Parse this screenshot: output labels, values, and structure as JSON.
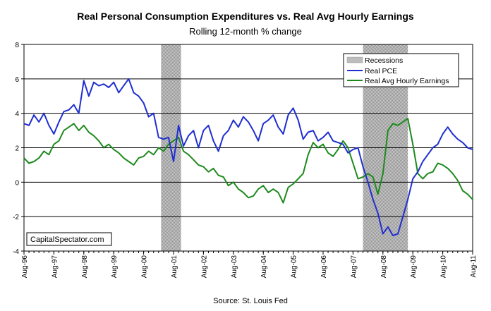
{
  "chart_data": {
    "type": "line",
    "title": "Real Personal Consumption Expenditures vs. Real Avg Hourly Earnings",
    "subtitle": "Rolling 12-month % change",
    "source": "Source: St. Louis Fed",
    "watermark": "CapitalSpectator.com",
    "ylim": [
      -4,
      8
    ],
    "yticks": [
      "8",
      "6",
      "4",
      "2",
      "0",
      "-2",
      "-4"
    ],
    "xlim": [
      "1996-08",
      "2011-08"
    ],
    "xticks": [
      "Aug-96",
      "Aug-97",
      "Aug-98",
      "Aug-99",
      "Aug-00",
      "Aug-01",
      "Aug-02",
      "Aug-03",
      "Aug-04",
      "Aug-05",
      "Aug-06",
      "Aug-07",
      "Aug-08",
      "Aug-09",
      "Aug-10",
      "Aug-11"
    ],
    "grid": true,
    "legend_position": "top-right",
    "legend": [
      "Recessions",
      "Real PCE",
      "Real Avg Hourly Earnings"
    ],
    "recessions": [
      {
        "start": "2001-03",
        "end": "2001-11"
      },
      {
        "start": "2007-12",
        "end": "2009-06"
      }
    ],
    "colors": {
      "pce": "#1f2fd0",
      "earnings": "#1e8a1e",
      "recession": "#bdbdbd"
    },
    "series": [
      {
        "name": "Real PCE",
        "x": [
          "1996-08",
          "1996-10",
          "1996-12",
          "1997-02",
          "1997-04",
          "1997-06",
          "1997-08",
          "1997-10",
          "1997-12",
          "1998-02",
          "1998-04",
          "1998-06",
          "1998-08",
          "1998-10",
          "1998-12",
          "1999-02",
          "1999-04",
          "1999-06",
          "1999-08",
          "1999-10",
          "1999-12",
          "2000-02",
          "2000-04",
          "2000-06",
          "2000-08",
          "2000-10",
          "2000-12",
          "2001-02",
          "2001-04",
          "2001-06",
          "2001-08",
          "2001-10",
          "2001-12",
          "2002-02",
          "2002-04",
          "2002-06",
          "2002-08",
          "2002-10",
          "2002-12",
          "2003-02",
          "2003-04",
          "2003-06",
          "2003-08",
          "2003-10",
          "2003-12",
          "2004-02",
          "2004-04",
          "2004-06",
          "2004-08",
          "2004-10",
          "2004-12",
          "2005-02",
          "2005-04",
          "2005-06",
          "2005-08",
          "2005-10",
          "2005-12",
          "2006-02",
          "2006-04",
          "2006-06",
          "2006-08",
          "2006-10",
          "2006-12",
          "2007-02",
          "2007-04",
          "2007-06",
          "2007-08",
          "2007-10",
          "2007-12",
          "2008-02",
          "2008-04",
          "2008-06",
          "2008-08",
          "2008-10",
          "2008-12",
          "2009-02",
          "2009-04",
          "2009-06",
          "2009-08",
          "2009-10",
          "2009-12",
          "2010-02",
          "2010-04",
          "2010-06",
          "2010-08",
          "2010-10",
          "2010-12",
          "2011-02",
          "2011-04",
          "2011-06",
          "2011-08"
        ],
        "values": [
          3.4,
          3.3,
          3.9,
          3.5,
          4.0,
          3.3,
          2.8,
          3.5,
          4.1,
          4.2,
          4.5,
          4.0,
          5.9,
          5.0,
          5.8,
          5.6,
          5.7,
          5.5,
          5.8,
          5.2,
          5.6,
          6.0,
          5.2,
          5.0,
          4.6,
          3.8,
          4.0,
          2.6,
          2.5,
          2.6,
          1.2,
          3.3,
          2.1,
          2.7,
          3.0,
          2.0,
          3.0,
          3.3,
          2.4,
          1.8,
          2.7,
          3.0,
          3.6,
          3.2,
          3.8,
          3.5,
          3.0,
          2.4,
          3.4,
          3.6,
          3.9,
          3.2,
          2.8,
          3.9,
          4.3,
          3.6,
          2.5,
          2.9,
          3.0,
          2.4,
          2.6,
          2.9,
          2.4,
          2.3,
          2.2,
          1.7,
          1.9,
          2.0,
          0.9,
          0.0,
          -1.0,
          -1.8,
          -3.0,
          -2.6,
          -3.1,
          -3.0,
          -2.0,
          -1.0,
          0.2,
          0.6,
          1.2,
          1.6,
          2.0,
          2.2,
          2.8,
          3.2,
          2.8,
          2.5,
          2.3,
          2.0,
          1.9
        ]
      },
      {
        "name": "Real Avg Hourly Earnings",
        "x": [
          "1996-08",
          "1996-10",
          "1996-12",
          "1997-02",
          "1997-04",
          "1997-06",
          "1997-08",
          "1997-10",
          "1997-12",
          "1998-02",
          "1998-04",
          "1998-06",
          "1998-08",
          "1998-10",
          "1998-12",
          "1999-02",
          "1999-04",
          "1999-06",
          "1999-08",
          "1999-10",
          "1999-12",
          "2000-02",
          "2000-04",
          "2000-06",
          "2000-08",
          "2000-10",
          "2000-12",
          "2001-02",
          "2001-04",
          "2001-06",
          "2001-08",
          "2001-10",
          "2001-12",
          "2002-02",
          "2002-04",
          "2002-06",
          "2002-08",
          "2002-10",
          "2002-12",
          "2003-02",
          "2003-04",
          "2003-06",
          "2003-08",
          "2003-10",
          "2003-12",
          "2004-02",
          "2004-04",
          "2004-06",
          "2004-08",
          "2004-10",
          "2004-12",
          "2005-02",
          "2005-04",
          "2005-06",
          "2005-08",
          "2005-10",
          "2005-12",
          "2006-02",
          "2006-04",
          "2006-06",
          "2006-08",
          "2006-10",
          "2006-12",
          "2007-02",
          "2007-04",
          "2007-06",
          "2007-08",
          "2007-10",
          "2007-12",
          "2008-02",
          "2008-04",
          "2008-06",
          "2008-08",
          "2008-10",
          "2008-12",
          "2009-02",
          "2009-04",
          "2009-06",
          "2009-08",
          "2009-10",
          "2009-12",
          "2010-02",
          "2010-04",
          "2010-06",
          "2010-08",
          "2010-10",
          "2010-12",
          "2011-02",
          "2011-04",
          "2011-06",
          "2011-08"
        ],
        "values": [
          1.4,
          1.1,
          1.2,
          1.4,
          1.8,
          1.6,
          2.2,
          2.4,
          3.0,
          3.2,
          3.4,
          3.0,
          3.3,
          2.9,
          2.7,
          2.4,
          2.0,
          2.2,
          1.9,
          1.7,
          1.4,
          1.2,
          1.0,
          1.4,
          1.5,
          1.8,
          1.6,
          2.0,
          1.8,
          2.2,
          2.4,
          2.6,
          1.8,
          1.6,
          1.3,
          1.0,
          0.9,
          0.6,
          0.8,
          0.4,
          0.3,
          -0.2,
          0.0,
          -0.4,
          -0.6,
          -0.9,
          -0.8,
          -0.4,
          -0.2,
          -0.6,
          -0.4,
          -0.6,
          -1.2,
          -0.3,
          -0.1,
          0.2,
          0.5,
          1.6,
          2.3,
          2.0,
          2.2,
          1.7,
          1.5,
          1.9,
          2.4,
          2.0,
          1.1,
          0.2,
          0.3,
          0.5,
          0.3,
          -0.7,
          0.5,
          3.0,
          3.4,
          3.3,
          3.5,
          3.7,
          2.2,
          0.5,
          0.2,
          0.5,
          0.6,
          1.1,
          1.0,
          0.8,
          0.5,
          0.1,
          -0.5,
          -0.7,
          -1.0
        ]
      }
    ]
  }
}
